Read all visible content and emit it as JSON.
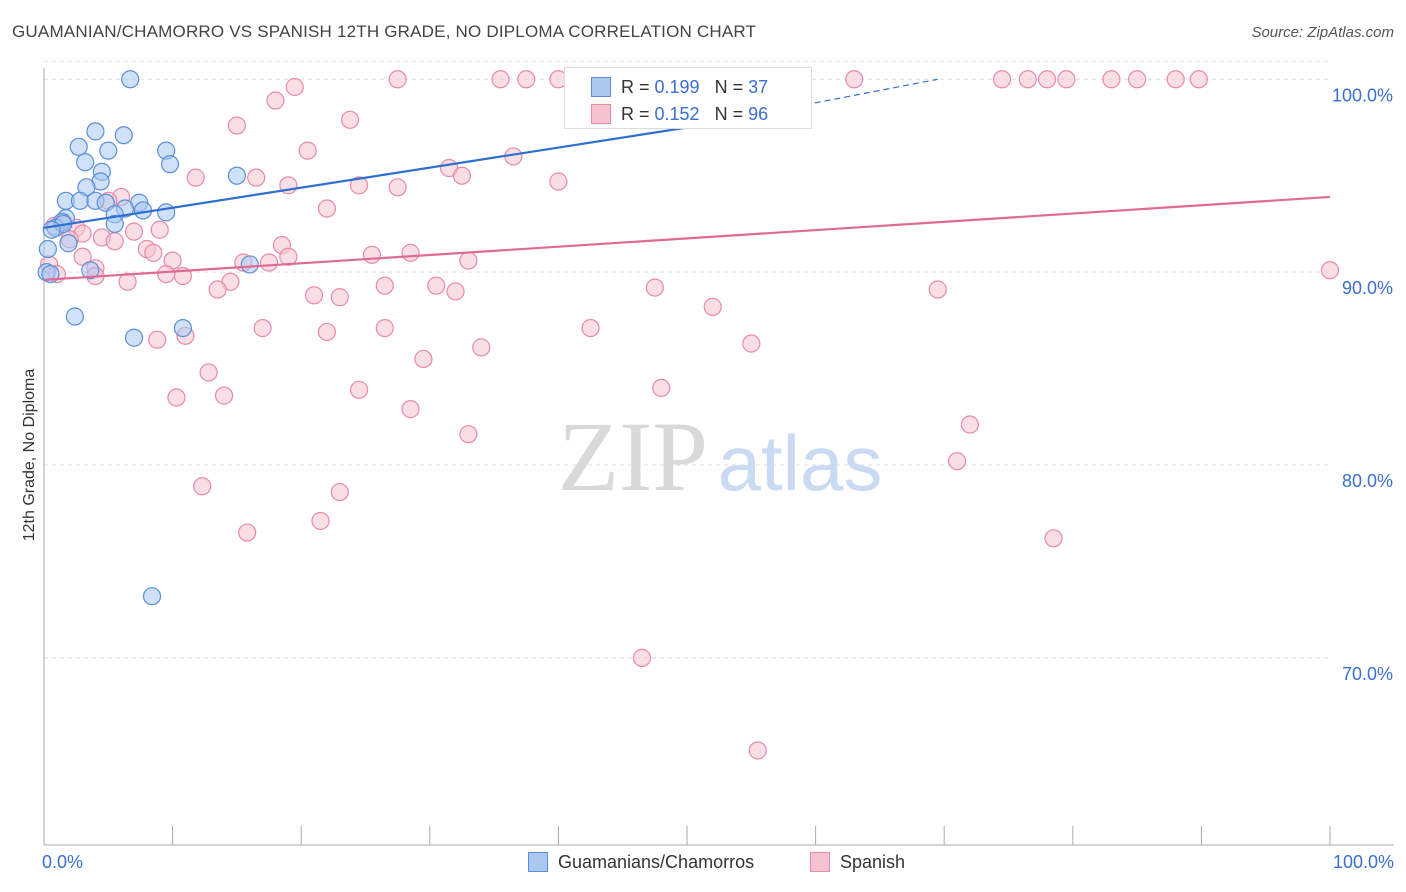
{
  "title": "GUAMANIAN/CHAMORRO VS SPANISH 12TH GRADE, NO DIPLOMA CORRELATION CHART",
  "source": "Source: ZipAtlas.com",
  "watermark": {
    "zip": "ZIP",
    "atlas": "atlas"
  },
  "colors": {
    "blue_fill": "#aac8f0",
    "blue_stroke": "#5a8fd8",
    "blue_line": "#2f6fcf",
    "pink_fill": "#f6c2d2",
    "pink_stroke": "#e88aa8",
    "pink_line": "#e06a93",
    "accent_text": "#3a6fd1",
    "grid": "#dddddd"
  },
  "legend": {
    "rows": [
      {
        "series": "Guamanians/Chamorros",
        "r_label": "R = ",
        "r_value": "0.199",
        "n_label": "N = ",
        "n_value": "37"
      },
      {
        "series": "Spanish",
        "r_label": "R = ",
        "r_value": "0.152",
        "n_label": "N = ",
        "n_value": "96"
      }
    ]
  },
  "bottom_legend": [
    "Guamanians/Chamorros",
    "Spanish"
  ],
  "chart_data": {
    "type": "scatter",
    "title": "GUAMANIAN/CHAMORRO VS SPANISH 12TH GRADE, NO DIPLOMA CORRELATION CHART",
    "xlabel": "",
    "ylabel": "12th Grade, No Diploma",
    "xlim": [
      0,
      100
    ],
    "ylim": [
      60.3,
      101
    ],
    "x_tick_labels": [
      "0.0%",
      "100.0%"
    ],
    "y_ticks": [
      70,
      80,
      90,
      100
    ],
    "y_tick_labels": [
      "70.0%",
      "80.0%",
      "90.0%",
      "100.0%"
    ],
    "grid": true,
    "legend_position": "top-center",
    "series": [
      {
        "name": "Guamanians/Chamorros",
        "R": 0.199,
        "N": 37,
        "trend": {
          "x0": 0,
          "y0": 92.3,
          "x1": 50,
          "y1": 97.5,
          "dashed_to_x": 69.5,
          "dashed_to_y": 100.0
        },
        "points": [
          [
            6.7,
            100.0
          ],
          [
            4.0,
            97.3
          ],
          [
            6.2,
            97.1
          ],
          [
            2.7,
            96.5
          ],
          [
            5.0,
            96.3
          ],
          [
            9.5,
            96.3
          ],
          [
            3.2,
            95.7
          ],
          [
            9.8,
            95.6
          ],
          [
            15.0,
            95.0
          ],
          [
            4.5,
            95.2
          ],
          [
            4.4,
            94.7
          ],
          [
            3.3,
            94.4
          ],
          [
            1.7,
            93.7
          ],
          [
            2.8,
            93.7
          ],
          [
            4.0,
            93.7
          ],
          [
            4.8,
            93.6
          ],
          [
            7.4,
            93.6
          ],
          [
            6.3,
            93.3
          ],
          [
            7.7,
            93.2
          ],
          [
            9.5,
            93.1
          ],
          [
            5.5,
            93.0
          ],
          [
            1.7,
            92.8
          ],
          [
            1.4,
            92.6
          ],
          [
            0.9,
            92.3
          ],
          [
            1.5,
            92.5
          ],
          [
            0.6,
            92.2
          ],
          [
            5.5,
            92.5
          ],
          [
            1.9,
            91.5
          ],
          [
            0.3,
            91.2
          ],
          [
            16.0,
            90.4
          ],
          [
            3.6,
            90.1
          ],
          [
            0.2,
            90.0
          ],
          [
            0.5,
            89.9
          ],
          [
            2.4,
            87.7
          ],
          [
            10.8,
            87.1
          ],
          [
            7.0,
            86.6
          ],
          [
            8.4,
            73.2
          ]
        ]
      },
      {
        "name": "Spanish",
        "R": 0.152,
        "N": 96,
        "trend": {
          "x0": 0,
          "y0": 89.6,
          "x1": 100,
          "y1": 93.9
        },
        "points": [
          [
            27.5,
            100.0
          ],
          [
            35.5,
            100.0
          ],
          [
            37.5,
            100.0
          ],
          [
            40.0,
            100.0
          ],
          [
            45.0,
            100.0
          ],
          [
            51.0,
            100.0
          ],
          [
            56.5,
            100.0
          ],
          [
            63.0,
            100.0
          ],
          [
            74.5,
            100.0
          ],
          [
            76.5,
            100.0
          ],
          [
            78.0,
            100.0
          ],
          [
            79.5,
            100.0
          ],
          [
            83.0,
            100.0
          ],
          [
            85.0,
            100.0
          ],
          [
            88.0,
            100.0
          ],
          [
            89.8,
            100.0
          ],
          [
            19.5,
            99.6
          ],
          [
            18.0,
            98.9
          ],
          [
            23.8,
            97.9
          ],
          [
            15.0,
            97.6
          ],
          [
            20.5,
            96.3
          ],
          [
            36.5,
            96.0
          ],
          [
            31.5,
            95.4
          ],
          [
            32.5,
            95.0
          ],
          [
            11.8,
            94.9
          ],
          [
            16.5,
            94.9
          ],
          [
            40.0,
            94.7
          ],
          [
            24.5,
            94.5
          ],
          [
            27.5,
            94.4
          ],
          [
            19.0,
            94.5
          ],
          [
            6.0,
            93.9
          ],
          [
            22.0,
            93.3
          ],
          [
            5.0,
            93.7
          ],
          [
            1.5,
            92.6
          ],
          [
            2.5,
            92.3
          ],
          [
            3.0,
            92.0
          ],
          [
            4.5,
            91.8
          ],
          [
            9.0,
            92.2
          ],
          [
            7.0,
            92.1
          ],
          [
            5.5,
            91.6
          ],
          [
            2.0,
            91.7
          ],
          [
            18.5,
            91.4
          ],
          [
            8.0,
            91.2
          ],
          [
            8.5,
            91.0
          ],
          [
            28.5,
            91.0
          ],
          [
            25.5,
            90.9
          ],
          [
            19.0,
            90.8
          ],
          [
            10.0,
            90.6
          ],
          [
            17.5,
            90.5
          ],
          [
            15.5,
            90.5
          ],
          [
            33.0,
            90.6
          ],
          [
            4.0,
            90.2
          ],
          [
            3.0,
            90.8
          ],
          [
            0.4,
            90.4
          ],
          [
            1.0,
            89.9
          ],
          [
            10.8,
            89.8
          ],
          [
            9.5,
            89.9
          ],
          [
            4.0,
            89.8
          ],
          [
            6.5,
            89.5
          ],
          [
            14.5,
            89.5
          ],
          [
            13.5,
            89.1
          ],
          [
            26.5,
            89.3
          ],
          [
            30.5,
            89.3
          ],
          [
            32.0,
            89.0
          ],
          [
            47.5,
            89.2
          ],
          [
            69.5,
            89.1
          ],
          [
            21.0,
            88.8
          ],
          [
            23.0,
            88.7
          ],
          [
            52.0,
            88.2
          ],
          [
            100.0,
            90.1
          ],
          [
            17.0,
            87.1
          ],
          [
            22.0,
            86.9
          ],
          [
            26.5,
            87.1
          ],
          [
            42.5,
            87.1
          ],
          [
            11.0,
            86.7
          ],
          [
            8.8,
            86.5
          ],
          [
            34.0,
            86.1
          ],
          [
            55.0,
            86.3
          ],
          [
            29.5,
            85.5
          ],
          [
            12.8,
            84.8
          ],
          [
            24.5,
            83.9
          ],
          [
            48.0,
            84.0
          ],
          [
            10.3,
            83.5
          ],
          [
            14.0,
            83.6
          ],
          [
            28.5,
            82.9
          ],
          [
            33.0,
            81.6
          ],
          [
            72.0,
            82.1
          ],
          [
            71.0,
            80.2
          ],
          [
            12.3,
            78.9
          ],
          [
            23.0,
            78.6
          ],
          [
            21.5,
            77.1
          ],
          [
            15.8,
            76.5
          ],
          [
            78.5,
            76.2
          ],
          [
            46.5,
            70.0
          ],
          [
            55.5,
            65.2
          ],
          [
            0.8,
            92.4
          ]
        ]
      }
    ]
  }
}
